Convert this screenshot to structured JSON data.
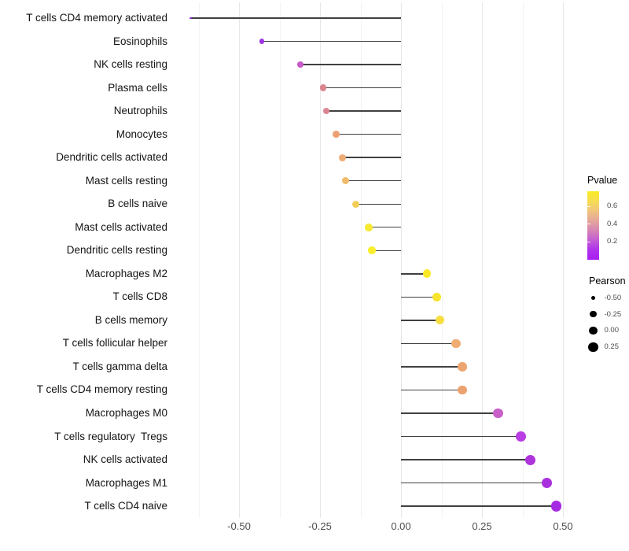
{
  "chart_data": {
    "type": "lollipop",
    "orientation": "horizontal",
    "title": "",
    "xlabel": "",
    "ylabel": "",
    "xlim": [
      -0.675,
      0.53
    ],
    "grid": "vertical-only",
    "baseline_value": 0,
    "x_axis": {
      "tick_labels": [
        "-0.50",
        "-0.25",
        "0.00",
        "0.25",
        "0.50"
      ],
      "tick_values": [
        -0.5,
        -0.25,
        0,
        0.25,
        0.5
      ],
      "minor_tick_values": [
        -0.625,
        -0.375,
        -0.125,
        0.125,
        0.375
      ]
    },
    "points": [
      {
        "label": "T cells CD4 memory activated",
        "pearson": -0.65,
        "color": "#8C2BD9"
      },
      {
        "label": "Eosinophils",
        "pearson": -0.43,
        "color": "#9D36E2"
      },
      {
        "label": "NK cells resting",
        "pearson": -0.31,
        "color": "#C55AC9"
      },
      {
        "label": "Plasma cells",
        "pearson": -0.24,
        "color": "#DB8591"
      },
      {
        "label": "Neutrophils",
        "pearson": -0.23,
        "color": "#DB8591"
      },
      {
        "label": "Monocytes",
        "pearson": -0.2,
        "color": "#ECA172"
      },
      {
        "label": "Dendritic cells activated",
        "pearson": -0.18,
        "color": "#EEAC77"
      },
      {
        "label": "Mast cells resting",
        "pearson": -0.17,
        "color": "#F0BB6B"
      },
      {
        "label": "B cells naive",
        "pearson": -0.14,
        "color": "#F3CC5A"
      },
      {
        "label": "Mast cells activated",
        "pearson": -0.1,
        "color": "#F8E932"
      },
      {
        "label": "Dendritic cells resting",
        "pearson": -0.09,
        "color": "#F8EE2C"
      },
      {
        "label": "Macrophages M2",
        "pearson": 0.08,
        "color": "#F9E826"
      },
      {
        "label": "T cells CD8",
        "pearson": 0.11,
        "color": "#F8E42C"
      },
      {
        "label": "B cells memory",
        "pearson": 0.12,
        "color": "#F8DE3E"
      },
      {
        "label": "T cells follicular helper",
        "pearson": 0.17,
        "color": "#EFAD72"
      },
      {
        "label": "T cells gamma delta",
        "pearson": 0.19,
        "color": "#ECA56E"
      },
      {
        "label": "T cells CD4 memory resting",
        "pearson": 0.19,
        "color": "#EBA170"
      },
      {
        "label": "Macrophages M0",
        "pearson": 0.3,
        "color": "#C95FC9"
      },
      {
        "label": "T cells regulatory  Tregs",
        "pearson": 0.37,
        "color": "#B93EE3"
      },
      {
        "label": "NK cells activated",
        "pearson": 0.4,
        "color": "#AE35DC"
      },
      {
        "label": "Macrophages M1",
        "pearson": 0.45,
        "color": "#A930DF"
      },
      {
        "label": "T cells CD4 naive",
        "pearson": 0.48,
        "color": "#A52BE3"
      }
    ],
    "legend_pvalue": {
      "title": "Pvalue",
      "tick_labels": [
        "0.6",
        "0.4",
        "0.2"
      ],
      "gradient_stops": [
        "#FAEB22",
        "#F7DD52",
        "#F0C47E",
        "#E5A699",
        "#D685B5",
        "#C35DD3",
        "#AE31EC",
        "#A81EF0"
      ]
    },
    "legend_pearson": {
      "title": "Pearson",
      "items": [
        {
          "label": "-0.50",
          "value": -0.5
        },
        {
          "label": "-0.25",
          "value": -0.25
        },
        {
          "label": "0.00",
          "value": 0.0
        },
        {
          "label": "0.25",
          "value": 0.25
        }
      ]
    }
  }
}
